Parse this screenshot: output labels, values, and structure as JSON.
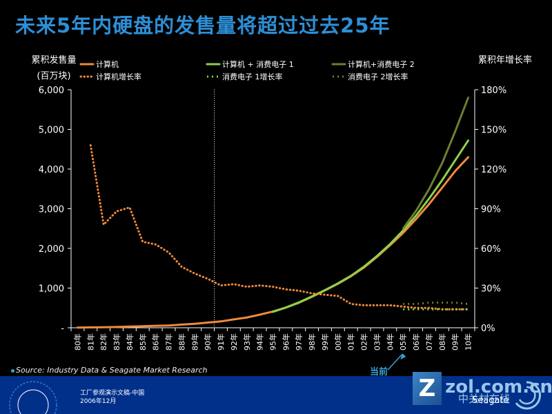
{
  "title": "未来5年内硬盘的发售量将超过过去25年",
  "left_axis_label_1": "累积发售量",
  "left_axis_label_2": "(百万块)",
  "right_axis_label": "累积年增长率",
  "source": "Source: Industry Data & Seagate Market Research",
  "current_marker": "当前",
  "footer_line1": "工厂参观演示文稿-中国",
  "footer_line2": "2006年12月",
  "watermark_text": "zol.com.cn",
  "watermark_sub": "中关村在线",
  "brand": "Seagate",
  "colors": {
    "background": "#000000",
    "title": "#2d8fd6",
    "computer": "#f08a3c",
    "ce1": "#8ed14a",
    "ce2": "#6e7f2e",
    "footer": "#00308a"
  },
  "chart_data": {
    "type": "line",
    "categories": [
      "80年",
      "81年",
      "82年",
      "83年",
      "84年",
      "85年",
      "86年",
      "87年",
      "88年",
      "89年",
      "90年",
      "91年",
      "92年",
      "93年",
      "94年",
      "95年",
      "96年",
      "97年",
      "98年",
      "99年",
      "00年",
      "01年",
      "02年",
      "03年",
      "04年",
      "05年",
      "06年",
      "07年",
      "08年",
      "09年",
      "10年"
    ],
    "left_axis": {
      "min": 0,
      "max": 6000,
      "ticks": [
        "-",
        "1,000",
        "2,000",
        "3,000",
        "4,000",
        "5,000",
        "6,000"
      ]
    },
    "right_axis": {
      "min": 0,
      "max": 180,
      "ticks": [
        "0%",
        "30%",
        "60%",
        "90%",
        "120%",
        "150%",
        "180%"
      ]
    },
    "divider_category": "90年",
    "current_category": "05年",
    "series": [
      {
        "name": "计算机",
        "axis": "left",
        "style": "solid",
        "color": "#f08a3c",
        "values": [
          5,
          8,
          12,
          20,
          30,
          40,
          50,
          55,
          80,
          100,
          130,
          160,
          210,
          260,
          330,
          410,
          510,
          630,
          780,
          940,
          1110,
          1300,
          1520,
          1790,
          2080,
          2390,
          2740,
          3120,
          3530,
          3950,
          4300
        ]
      },
      {
        "name": "计算机 + 消费电子 1",
        "axis": "left",
        "style": "solid",
        "color": "#8ed14a",
        "values": [
          null,
          null,
          null,
          null,
          null,
          null,
          null,
          null,
          null,
          null,
          null,
          null,
          null,
          null,
          null,
          400,
          510,
          640,
          790,
          950,
          1120,
          1310,
          1540,
          1810,
          2110,
          2450,
          2830,
          3260,
          3720,
          4220,
          4720
        ]
      },
      {
        "name": "计算机+消费电子 2",
        "axis": "left",
        "style": "solid",
        "color": "#6e7f2e",
        "values": [
          null,
          null,
          null,
          null,
          null,
          null,
          null,
          null,
          null,
          null,
          null,
          null,
          null,
          null,
          null,
          null,
          null,
          null,
          null,
          null,
          null,
          null,
          null,
          null,
          null,
          2500,
          2950,
          3500,
          4150,
          4950,
          5800
        ]
      },
      {
        "name": "计算机增长率",
        "axis": "right",
        "style": "dotted",
        "color": "#f08a3c",
        "values": [
          null,
          138,
          78,
          88,
          91,
          65,
          63,
          57,
          46,
          41,
          37,
          32,
          33,
          31,
          32,
          31,
          29,
          28,
          26,
          25,
          24,
          18,
          17,
          17,
          17,
          16,
          15,
          15,
          14,
          14,
          14
        ]
      },
      {
        "name": "消费电子 1增长率",
        "axis": "right",
        "style": "dashed",
        "color": "#8ed14a",
        "values": [
          null,
          null,
          null,
          null,
          null,
          null,
          null,
          null,
          null,
          null,
          null,
          null,
          null,
          null,
          null,
          null,
          null,
          null,
          null,
          null,
          null,
          null,
          null,
          null,
          null,
          14,
          14,
          14,
          14,
          14,
          14
        ]
      },
      {
        "name": "消费电子 2增长率",
        "axis": "right",
        "style": "dashed",
        "color": "#6e7f2e",
        "values": [
          null,
          null,
          null,
          null,
          null,
          null,
          null,
          null,
          null,
          null,
          null,
          null,
          null,
          null,
          null,
          null,
          null,
          null,
          null,
          null,
          null,
          null,
          null,
          null,
          null,
          18,
          18,
          19,
          19,
          19,
          18
        ]
      }
    ]
  }
}
